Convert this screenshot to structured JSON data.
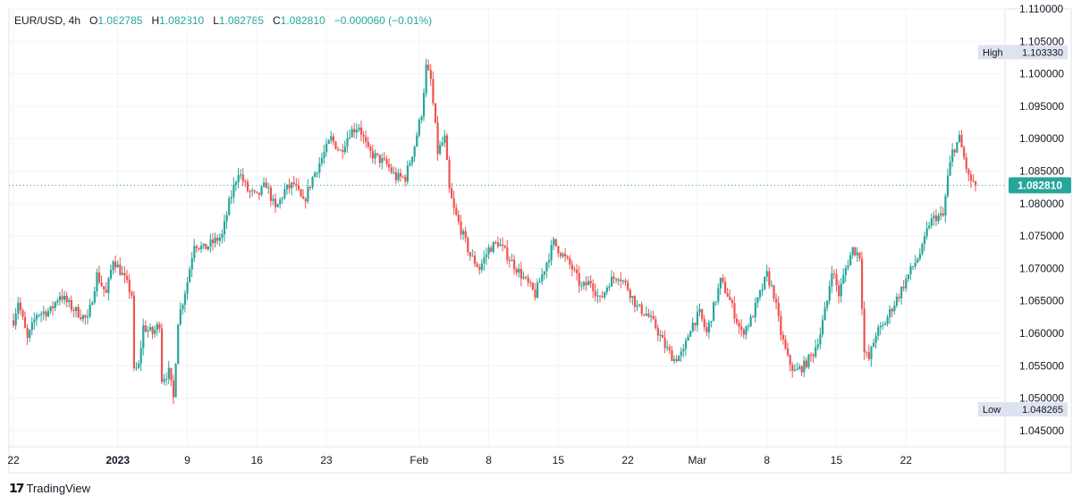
{
  "header": {
    "symbol": "EUR/USD, 4h",
    "open_label": "O",
    "open": "1.082785",
    "high_label": "H",
    "high": "1.082810",
    "low_label": "L",
    "low": "1.082785",
    "close_label": "C",
    "close": "1.082810",
    "change": "−0.000060 (−0.01%)"
  },
  "branding": {
    "logo_text": "TradingView"
  },
  "colors": {
    "up": "#26a69a",
    "down": "#ef5350",
    "grid": "#f0f3fa",
    "axis_text": "#131722"
  },
  "chart_data": {
    "type": "candlestick",
    "timeframe": "4h",
    "ylim": [
      1.0425,
      1.11
    ],
    "y_ticks": [
      "1.045000",
      "1.050000",
      "1.055000",
      "1.060000",
      "1.065000",
      "1.070000",
      "1.075000",
      "1.080000",
      "1.085000",
      "1.090000",
      "1.095000",
      "1.100000",
      "1.105000",
      "1.110000"
    ],
    "x_ticks": [
      {
        "label": "22",
        "t": 0
      },
      {
        "label": "2023",
        "t": 45,
        "bold": true
      },
      {
        "label": "9",
        "t": 75
      },
      {
        "label": "16",
        "t": 105
      },
      {
        "label": "23",
        "t": 135
      },
      {
        "label": "Feb",
        "t": 175
      },
      {
        "label": "8",
        "t": 205
      },
      {
        "label": "15",
        "t": 235
      },
      {
        "label": "22",
        "t": 265
      },
      {
        "label": "Mar",
        "t": 295
      },
      {
        "label": "8",
        "t": 325
      },
      {
        "label": "15",
        "t": 355
      },
      {
        "label": "22",
        "t": 385
      }
    ],
    "t_max": 420,
    "high_marker": {
      "label": "High",
      "value": "1.103330",
      "y": 1.10333
    },
    "low_marker": {
      "label": "Low",
      "value": "1.048265",
      "y": 1.048265
    },
    "last_price": {
      "value": "1.082810",
      "y": 1.08281
    },
    "anchors": [
      [
        0,
        1.062
      ],
      [
        2,
        1.065
      ],
      [
        6,
        1.059
      ],
      [
        10,
        1.063
      ],
      [
        16,
        1.0635
      ],
      [
        20,
        1.066
      ],
      [
        25,
        1.064
      ],
      [
        32,
        1.062
      ],
      [
        36,
        1.069
      ],
      [
        40,
        1.066
      ],
      [
        43,
        1.0715
      ],
      [
        47,
        1.069
      ],
      [
        51,
        1.066
      ],
      [
        52,
        1.054
      ],
      [
        54,
        1.055
      ],
      [
        56,
        1.061
      ],
      [
        60,
        1.06
      ],
      [
        63,
        1.0615
      ],
      [
        64,
        1.053
      ],
      [
        67,
        1.054
      ],
      [
        69,
        1.05
      ],
      [
        71,
        1.062
      ],
      [
        75,
        1.068
      ],
      [
        78,
        1.074
      ],
      [
        82,
        1.073
      ],
      [
        86,
        1.074
      ],
      [
        90,
        1.075
      ],
      [
        93,
        1.08
      ],
      [
        97,
        1.085
      ],
      [
        101,
        1.082
      ],
      [
        105,
        1.081
      ],
      [
        109,
        1.083
      ],
      [
        113,
        1.079
      ],
      [
        117,
        1.082
      ],
      [
        121,
        1.083
      ],
      [
        125,
        1.08
      ],
      [
        129,
        1.084
      ],
      [
        133,
        1.087
      ],
      [
        137,
        1.09
      ],
      [
        141,
        1.088
      ],
      [
        145,
        1.091
      ],
      [
        149,
        1.092
      ],
      [
        153,
        1.088
      ],
      [
        157,
        1.087
      ],
      [
        161,
        1.086
      ],
      [
        165,
        1.084
      ],
      [
        169,
        1.084
      ],
      [
        173,
        1.089
      ],
      [
        176,
        1.094
      ],
      [
        178,
        1.101
      ],
      [
        180,
        1.099
      ],
      [
        183,
        1.088
      ],
      [
        186,
        1.09
      ],
      [
        188,
        1.082
      ],
      [
        190,
        1.079
      ],
      [
        193,
        1.076
      ],
      [
        197,
        1.072
      ],
      [
        201,
        1.07
      ],
      [
        205,
        1.073
      ],
      [
        209,
        1.074
      ],
      [
        213,
        1.072
      ],
      [
        217,
        1.07
      ],
      [
        221,
        1.068
      ],
      [
        225,
        1.066
      ],
      [
        229,
        1.07
      ],
      [
        233,
        1.074
      ],
      [
        237,
        1.072
      ],
      [
        241,
        1.07
      ],
      [
        245,
        1.067
      ],
      [
        249,
        1.068
      ],
      [
        253,
        1.065
      ],
      [
        257,
        1.068
      ],
      [
        261,
        1.069
      ],
      [
        265,
        1.067
      ],
      [
        269,
        1.064
      ],
      [
        273,
        1.063
      ],
      [
        277,
        1.061
      ],
      [
        281,
        1.058
      ],
      [
        285,
        1.056
      ],
      [
        289,
        1.057
      ],
      [
        292,
        1.061
      ],
      [
        296,
        1.063
      ],
      [
        299,
        1.06
      ],
      [
        302,
        1.064
      ],
      [
        305,
        1.068
      ],
      [
        308,
        1.066
      ],
      [
        311,
        1.063
      ],
      [
        314,
        1.06
      ],
      [
        318,
        1.062
      ],
      [
        322,
        1.066
      ],
      [
        325,
        1.069
      ],
      [
        328,
        1.066
      ],
      [
        331,
        1.06
      ],
      [
        334,
        1.056
      ],
      [
        337,
        1.054
      ],
      [
        341,
        1.055
      ],
      [
        345,
        1.057
      ],
      [
        348,
        1.06
      ],
      [
        351,
        1.065
      ],
      [
        353,
        1.07
      ],
      [
        356,
        1.066
      ],
      [
        359,
        1.07
      ],
      [
        362,
        1.073
      ],
      [
        365,
        1.072
      ],
      [
        367,
        1.057
      ],
      [
        369,
        1.056
      ],
      [
        372,
        1.06
      ],
      [
        375,
        1.061
      ],
      [
        379,
        1.064
      ],
      [
        382,
        1.066
      ],
      [
        386,
        1.069
      ],
      [
        389,
        1.071
      ],
      [
        392,
        1.073
      ],
      [
        395,
        1.077
      ],
      [
        398,
        1.078
      ],
      [
        401,
        1.078
      ],
      [
        403,
        1.084
      ],
      [
        405,
        1.088
      ],
      [
        408,
        1.09
      ],
      [
        410,
        1.087
      ],
      [
        412,
        1.084
      ],
      [
        415,
        1.0828
      ]
    ]
  }
}
